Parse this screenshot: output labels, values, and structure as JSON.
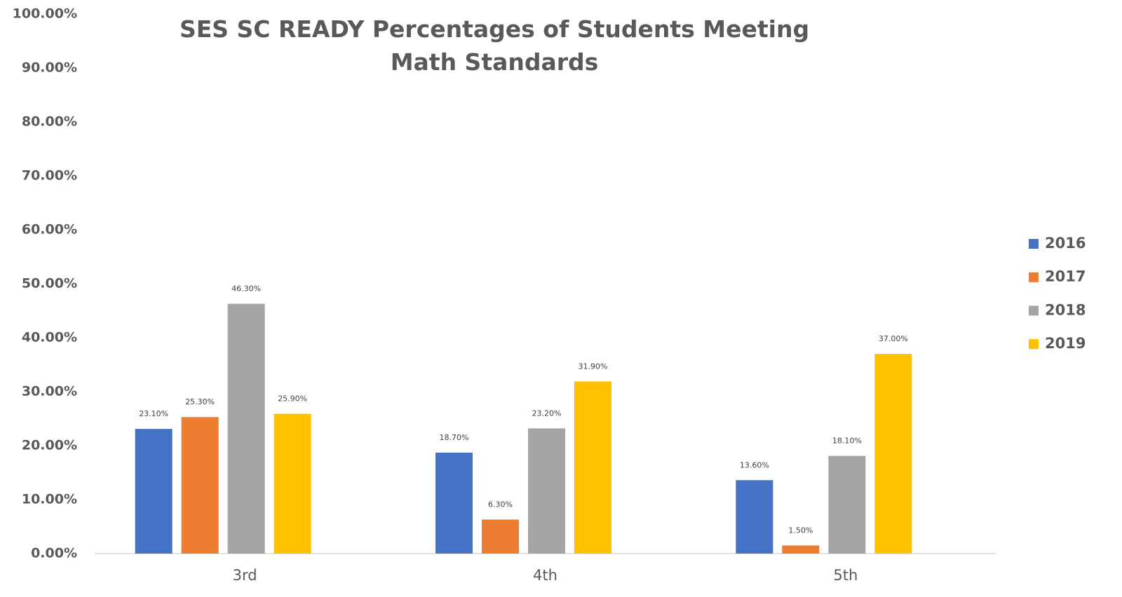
{
  "chart_data": {
    "type": "bar",
    "title": "SES SC READY Percentages of Students Meeting Math Standards",
    "categories": [
      "3rd",
      "4th",
      "5th"
    ],
    "series": [
      {
        "name": "2016",
        "color": "#4472c4",
        "values": [
          23.1,
          18.7,
          13.6
        ],
        "value_labels": [
          "23.10%",
          "18.70%",
          "13.60%"
        ]
      },
      {
        "name": "2017",
        "color": "#ed7d31",
        "values": [
          25.3,
          6.3,
          1.5
        ],
        "value_labels": [
          "25.30%",
          "6.30%",
          "1.50%"
        ]
      },
      {
        "name": "2018",
        "color": "#a5a5a5",
        "values": [
          46.3,
          23.2,
          18.1
        ],
        "value_labels": [
          "46.30%",
          "23.20%",
          "18.10%"
        ]
      },
      {
        "name": "2019",
        "color": "#ffc000",
        "values": [
          25.9,
          31.9,
          37.0
        ],
        "value_labels": [
          "25.90%",
          "31.90%",
          "37.00%"
        ]
      }
    ],
    "ylim": [
      0,
      100
    ],
    "yticks": [
      {
        "value": 0,
        "label": "0.00%"
      },
      {
        "value": 10,
        "label": "10.00%"
      },
      {
        "value": 20,
        "label": "20.00%"
      },
      {
        "value": 30,
        "label": "30.00%"
      },
      {
        "value": 40,
        "label": "40.00%"
      },
      {
        "value": 50,
        "label": "50.00%"
      },
      {
        "value": 60,
        "label": "60.00%"
      },
      {
        "value": 70,
        "label": "70.00%"
      },
      {
        "value": 80,
        "label": "80.00%"
      },
      {
        "value": 90,
        "label": "90.00%"
      },
      {
        "value": 100,
        "label": "100.00%"
      }
    ],
    "grid": false,
    "legend": "right"
  }
}
